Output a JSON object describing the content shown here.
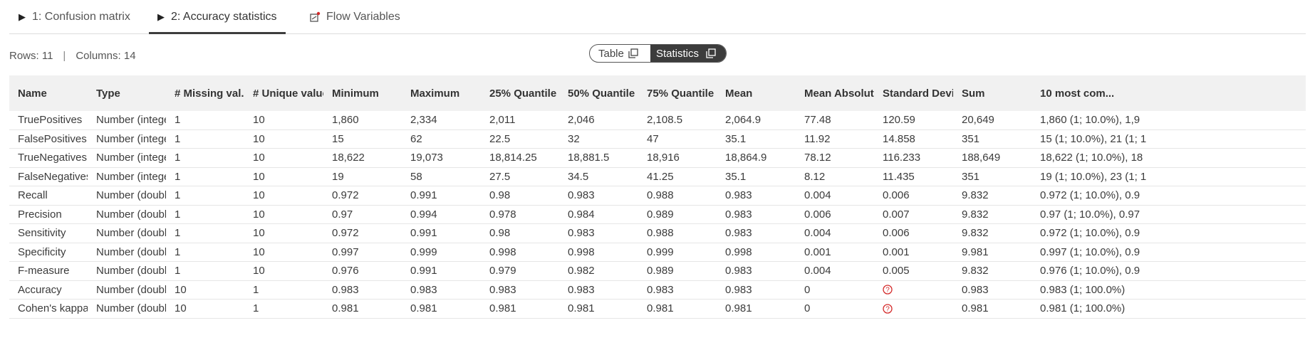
{
  "tabs": [
    {
      "label": "1: Confusion matrix",
      "icon": "play-icon"
    },
    {
      "label": "2: Accuracy statistics",
      "icon": "play-icon"
    },
    {
      "label": "Flow Variables",
      "icon": "flow-variable-icon"
    }
  ],
  "summary": {
    "rows": "Rows: 11",
    "separator": "|",
    "columns": "Columns: 14"
  },
  "view_toggle": {
    "table_label": "Table",
    "statistics_label": "Statistics",
    "selected": "Statistics"
  },
  "colors": {
    "text": "#3b3b3b",
    "header_bg": "#f1f1f1",
    "toggle_active": "#3c3c3c",
    "missing_icon": "#d42a2a"
  },
  "table": {
    "columns": [
      "Name",
      "Type",
      "# Missing val...",
      "# Unique values",
      "Minimum",
      "Maximum",
      "25% Quantile",
      "50% Quantile (...",
      "75% Quantile",
      "Mean",
      "Mean Absolut...",
      "Standard Devi...",
      "Sum",
      "10 most com..."
    ],
    "rows": [
      [
        "TruePositives",
        "Number (integer",
        "1",
        "10",
        "1,860",
        "2,334",
        "2,011",
        "2,046",
        "2,108.5",
        "2,064.9",
        "77.48",
        "120.59",
        "20,649",
        "1,860 (1; 10.0%), 1,9"
      ],
      [
        "FalsePositives",
        "Number (integer",
        "1",
        "10",
        "15",
        "62",
        "22.5",
        "32",
        "47",
        "35.1",
        "11.92",
        "14.858",
        "351",
        "15 (1; 10.0%), 21 (1; 1"
      ],
      [
        "TrueNegatives",
        "Number (integer",
        "1",
        "10",
        "18,622",
        "19,073",
        "18,814.25",
        "18,881.5",
        "18,916",
        "18,864.9",
        "78.12",
        "116.233",
        "188,649",
        "18,622 (1; 10.0%), 18"
      ],
      [
        "FalseNegatives",
        "Number (integer",
        "1",
        "10",
        "19",
        "58",
        "27.5",
        "34.5",
        "41.25",
        "35.1",
        "8.12",
        "11.435",
        "351",
        "19 (1; 10.0%), 23 (1; 1"
      ],
      [
        "Recall",
        "Number (double",
        "1",
        "10",
        "0.972",
        "0.991",
        "0.98",
        "0.983",
        "0.988",
        "0.983",
        "0.004",
        "0.006",
        "9.832",
        "0.972 (1; 10.0%), 0.9"
      ],
      [
        "Precision",
        "Number (double",
        "1",
        "10",
        "0.97",
        "0.994",
        "0.978",
        "0.984",
        "0.989",
        "0.983",
        "0.006",
        "0.007",
        "9.832",
        "0.97 (1; 10.0%), 0.97"
      ],
      [
        "Sensitivity",
        "Number (double",
        "1",
        "10",
        "0.972",
        "0.991",
        "0.98",
        "0.983",
        "0.988",
        "0.983",
        "0.004",
        "0.006",
        "9.832",
        "0.972 (1; 10.0%), 0.9"
      ],
      [
        "Specificity",
        "Number (double",
        "1",
        "10",
        "0.997",
        "0.999",
        "0.998",
        "0.998",
        "0.999",
        "0.998",
        "0.001",
        "0.001",
        "9.981",
        "0.997 (1; 10.0%), 0.9"
      ],
      [
        "F-measure",
        "Number (double",
        "1",
        "10",
        "0.976",
        "0.991",
        "0.979",
        "0.982",
        "0.989",
        "0.983",
        "0.004",
        "0.005",
        "9.832",
        "0.976 (1; 10.0%), 0.9"
      ],
      [
        "Accuracy",
        "Number (double",
        "10",
        "1",
        "0.983",
        "0.983",
        "0.983",
        "0.983",
        "0.983",
        "0.983",
        "0",
        "",
        "0.983",
        "0.983 (1; 100.0%)"
      ],
      [
        "Cohen's kappa",
        "Number (double",
        "10",
        "1",
        "0.981",
        "0.981",
        "0.981",
        "0.981",
        "0.981",
        "0.981",
        "0",
        "",
        "0.981",
        "0.981 (1; 100.0%)"
      ]
    ],
    "missing_value_icon_cells": [
      [
        9,
        11
      ],
      [
        10,
        11
      ]
    ]
  }
}
